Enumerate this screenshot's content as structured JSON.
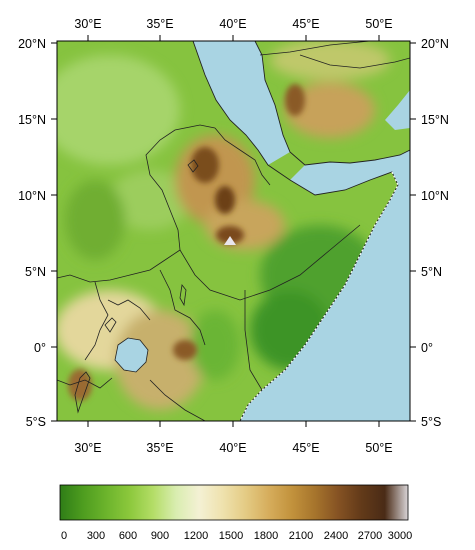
{
  "map": {
    "lon_ticks": [
      "30°E",
      "35°E",
      "40°E",
      "45°E",
      "50°E"
    ],
    "lat_ticks": [
      "20°N",
      "15°N",
      "10°N",
      "5°N",
      "0°",
      "5°S"
    ],
    "colors": {
      "sea": "#a9d4e3",
      "lowland": "#2e8b2a",
      "plain": "#79bf3a",
      "plateau": "#c9a157",
      "highland": "#7a4a1c",
      "peak": "#e9e6ec",
      "border": "#222222"
    }
  },
  "colorbar": {
    "labels": [
      "0",
      "300",
      "600",
      "900",
      "1200",
      "1500",
      "1800",
      "2100",
      "2400",
      "2700",
      "3000"
    ],
    "colors": [
      "#2f7d17",
      "#4e9d1f",
      "#6cb42c",
      "#8cc83c",
      "#b3dd66",
      "#d9edb0",
      "#f4f1d4",
      "#efe2ae",
      "#e4cb84",
      "#d6ad5c",
      "#c2923c",
      "#a6742c",
      "#855223",
      "#623a19",
      "#4a2b16",
      "#d9d5d8"
    ]
  }
}
